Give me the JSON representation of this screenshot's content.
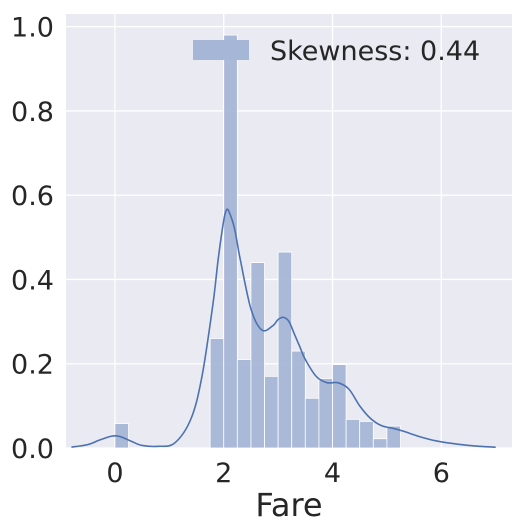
{
  "chart_data": {
    "type": "bar",
    "title": "",
    "xlabel": "Fare",
    "ylabel": "",
    "xlim": [
      -0.9,
      7.3
    ],
    "ylim": [
      0,
      1.03
    ],
    "xticks": [
      "0",
      "2",
      "4",
      "6"
    ],
    "xtick_values": [
      0,
      2,
      4,
      6
    ],
    "yticks": [
      "0.0",
      "0.2",
      "0.4",
      "0.6",
      "0.8",
      "1.0"
    ],
    "ytick_values": [
      0,
      0.2,
      0.4,
      0.6,
      0.8,
      1.0
    ],
    "grid": true,
    "legend_position": "top-right",
    "legend": [
      "Skewness: 0.44"
    ],
    "bar_color": "#a6b6d6",
    "line_color": "#4c72b0",
    "background_color": "#eaeaf2",
    "grid_color": "#ffffff",
    "bin_width": 0.25,
    "histogram": [
      {
        "x0": 0.0,
        "height": 0.058
      },
      {
        "x0": 1.75,
        "height": 0.26
      },
      {
        "x0": 2.0,
        "height": 0.98
      },
      {
        "x0": 2.25,
        "height": 0.21
      },
      {
        "x0": 2.5,
        "height": 0.44
      },
      {
        "x0": 2.75,
        "height": 0.17
      },
      {
        "x0": 3.0,
        "height": 0.465
      },
      {
        "x0": 3.25,
        "height": 0.23
      },
      {
        "x0": 3.5,
        "height": 0.118
      },
      {
        "x0": 3.75,
        "height": 0.165
      },
      {
        "x0": 4.0,
        "height": 0.198
      },
      {
        "x0": 4.25,
        "height": 0.068
      },
      {
        "x0": 4.5,
        "height": 0.063
      },
      {
        "x0": 4.75,
        "height": 0.022
      },
      {
        "x0": 5.0,
        "height": 0.052
      }
    ],
    "kde": {
      "x": [
        -0.8,
        -0.5,
        -0.3,
        -0.1,
        0.0,
        0.1,
        0.3,
        0.5,
        0.8,
        1.1,
        1.4,
        1.6,
        1.8,
        1.9,
        2.0,
        2.05,
        2.1,
        2.2,
        2.3,
        2.5,
        2.7,
        2.9,
        3.0,
        3.1,
        3.2,
        3.3,
        3.4,
        3.5,
        3.7,
        3.9,
        4.1,
        4.3,
        4.5,
        4.7,
        4.9,
        5.1,
        5.3,
        5.6,
        5.9,
        6.3,
        6.7,
        7.0
      ],
      "y": [
        0.002,
        0.008,
        0.018,
        0.027,
        0.029,
        0.027,
        0.016,
        0.006,
        0.004,
        0.012,
        0.07,
        0.17,
        0.34,
        0.45,
        0.54,
        0.565,
        0.56,
        0.52,
        0.45,
        0.33,
        0.28,
        0.29,
        0.305,
        0.31,
        0.3,
        0.27,
        0.24,
        0.21,
        0.17,
        0.155,
        0.155,
        0.14,
        0.1,
        0.07,
        0.053,
        0.047,
        0.04,
        0.027,
        0.017,
        0.009,
        0.004,
        0.002
      ]
    }
  }
}
